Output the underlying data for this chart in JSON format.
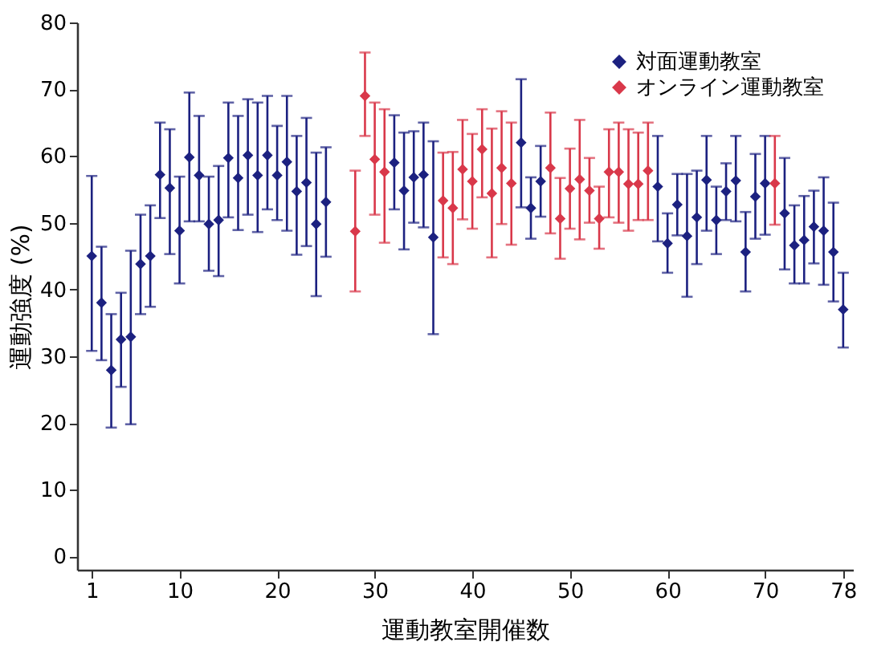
{
  "chart_data": {
    "type": "scatter",
    "xlabel": "運動教室開催数",
    "ylabel": "運動強度 (%)",
    "xlim": [
      -0.5,
      79
    ],
    "xticks": [
      1,
      10,
      20,
      30,
      40,
      50,
      60,
      70,
      78
    ],
    "ylim": [
      -2,
      80
    ],
    "yticks": [
      0,
      10,
      20,
      30,
      40,
      50,
      60,
      70,
      80
    ],
    "grid": false,
    "legend": "top right",
    "marker": "diamond",
    "series": [
      {
        "name": "対面運動教室",
        "color": "#1c2180",
        "x": [
          1,
          2,
          3,
          4,
          5,
          6,
          7,
          8,
          9,
          10,
          11,
          12,
          13,
          14,
          15,
          16,
          17,
          18,
          19,
          20,
          21,
          22,
          23,
          24,
          25,
          32,
          33,
          34,
          35,
          36,
          45,
          46,
          47,
          59,
          60,
          61,
          62,
          63,
          64,
          65,
          66,
          67,
          68,
          69,
          70,
          72,
          73,
          74,
          75,
          76,
          77,
          78
        ],
        "values": [
          45.0,
          38.0,
          27.9,
          32.5,
          32.9,
          43.8,
          45.0,
          57.2,
          55.2,
          48.8,
          59.8,
          57.1,
          49.8,
          50.4,
          59.7,
          56.7,
          60.1,
          57.1,
          60.1,
          57.1,
          59.1,
          54.7,
          56.0,
          49.8,
          53.1,
          59.0,
          54.8,
          56.8,
          57.2,
          47.8,
          62.0,
          52.2,
          56.2,
          55.4,
          46.9,
          52.7,
          48.0,
          50.8,
          56.4,
          50.4,
          54.7,
          56.3,
          45.6,
          53.9,
          55.9,
          51.4,
          46.6,
          47.4,
          49.4,
          48.8,
          45.6,
          37.0
        ],
        "errors": [
          [
            30.8,
            57.0
          ],
          [
            29.4,
            46.4
          ],
          [
            19.3,
            36.3
          ],
          [
            25.4,
            39.5
          ],
          [
            19.8,
            45.8
          ],
          [
            36.3,
            51.2
          ],
          [
            37.4,
            52.6
          ],
          [
            50.7,
            65
          ],
          [
            45.3,
            64
          ],
          [
            40.9,
            56.9
          ],
          [
            50.2,
            69.5
          ],
          [
            50.2,
            66
          ],
          [
            42.8,
            56.9
          ],
          [
            42.0,
            58.5
          ],
          [
            50.8,
            68
          ],
          [
            48.9,
            66
          ],
          [
            51.2,
            68.5
          ],
          [
            48.6,
            68
          ],
          [
            52.0,
            69
          ],
          [
            50.4,
            64.5
          ],
          [
            48.8,
            69
          ],
          [
            45.2,
            63
          ],
          [
            46.5,
            65.7
          ],
          [
            39.0,
            60.5
          ],
          [
            44.9,
            61.3
          ],
          [
            52.0,
            66.1
          ],
          [
            46.0,
            63.5
          ],
          [
            50.0,
            63.7
          ],
          [
            49.3,
            65.0
          ],
          [
            33.3,
            62.2
          ],
          [
            52.3,
            71.5
          ],
          [
            47.6,
            56.8
          ],
          [
            50.9,
            61.5
          ],
          [
            47.2,
            63
          ],
          [
            42.5,
            51.4
          ],
          [
            48.1,
            57.3
          ],
          [
            38.9,
            57.3
          ],
          [
            43.8,
            57.8
          ],
          [
            48.8,
            63
          ],
          [
            45.3,
            55.4
          ],
          [
            50.4,
            58.9
          ],
          [
            50.2,
            63
          ],
          [
            39.7,
            51.6
          ],
          [
            47.6,
            60.3
          ],
          [
            48.2,
            63
          ],
          [
            43.0,
            59.7
          ],
          [
            40.9,
            52.6
          ],
          [
            40.9,
            54.0
          ],
          [
            43.9,
            54.8
          ],
          [
            40.7,
            56.8
          ],
          [
            38.2,
            53.0
          ],
          [
            31.3,
            42.5
          ]
        ]
      },
      {
        "name": "オンライン運動教室",
        "color": "#d9384a",
        "x": [
          28,
          29,
          30,
          31,
          37,
          38,
          39,
          40,
          41,
          42,
          43,
          44,
          48,
          49,
          50,
          51,
          52,
          53,
          54,
          55,
          56,
          57,
          58,
          71
        ],
        "values": [
          48.7,
          69.0,
          59.5,
          57.6,
          53.3,
          52.2,
          58.0,
          56.2,
          61.0,
          54.4,
          58.2,
          55.9,
          58.2,
          50.6,
          55.1,
          56.5,
          54.8,
          50.6,
          57.6,
          57.6,
          55.8,
          55.8,
          57.8,
          55.9
        ],
        "errors": [
          [
            39.7,
            57.8
          ],
          [
            63,
            75.5
          ],
          [
            51.2,
            68
          ],
          [
            47.0,
            67
          ],
          [
            44.8,
            60.5
          ],
          [
            43.8,
            60.6
          ],
          [
            50.5,
            65.4
          ],
          [
            49.1,
            63.3
          ],
          [
            53.8,
            67
          ],
          [
            44.8,
            64.1
          ],
          [
            49.8,
            66.7
          ],
          [
            46.7,
            65.0
          ],
          [
            48.4,
            66.5
          ],
          [
            44.6,
            56.7
          ],
          [
            49.1,
            61.1
          ],
          [
            47.5,
            65.4
          ],
          [
            50.0,
            59.7
          ],
          [
            46.1,
            55.4
          ],
          [
            50.8,
            64
          ],
          [
            50.0,
            65
          ],
          [
            48.8,
            64
          ],
          [
            50.4,
            63.5
          ],
          [
            50.4,
            65
          ],
          [
            49.7,
            63
          ]
        ]
      }
    ]
  }
}
